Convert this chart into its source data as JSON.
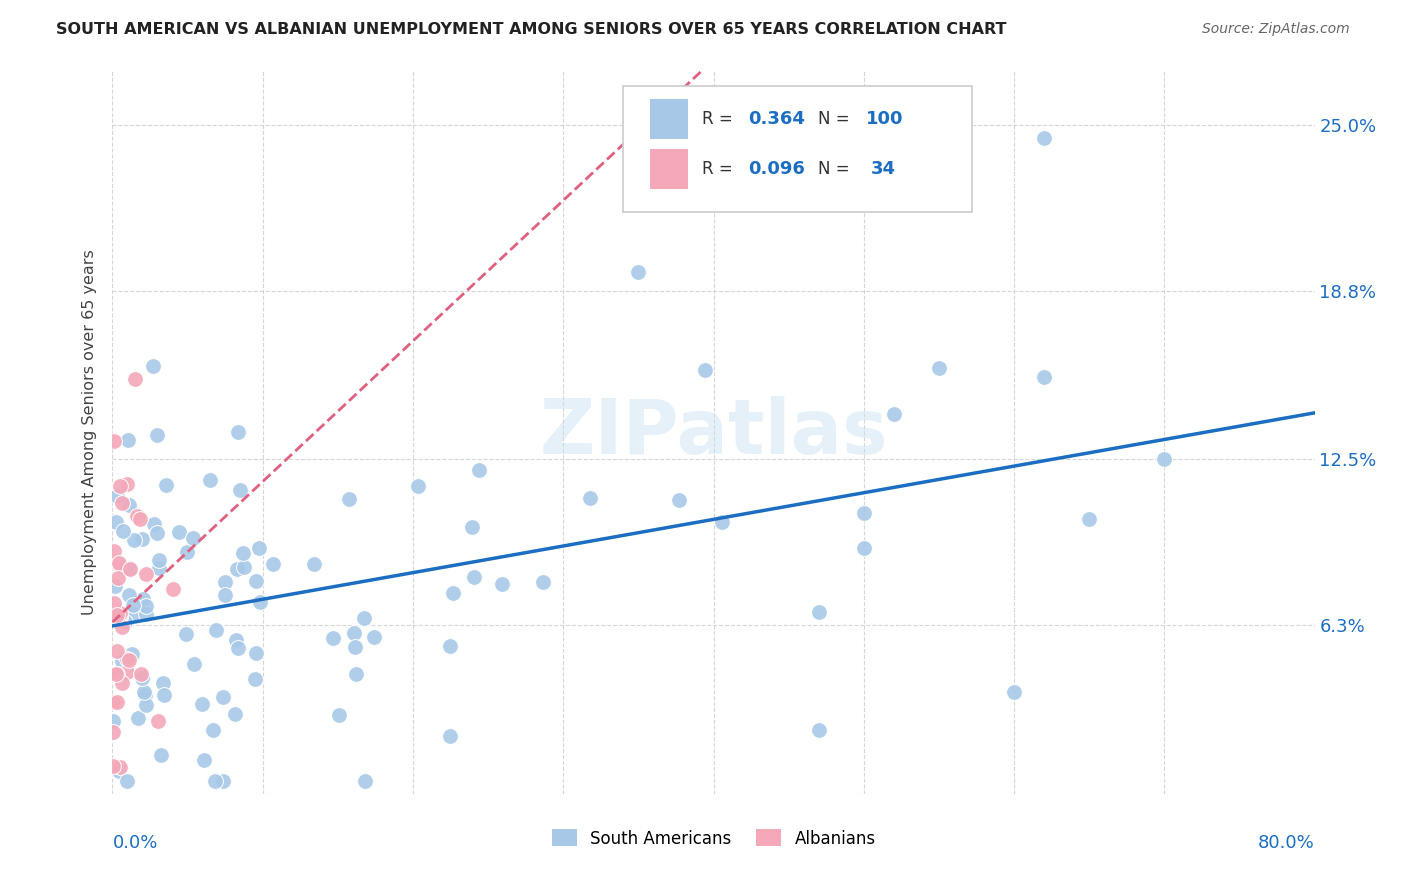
{
  "title": "SOUTH AMERICAN VS ALBANIAN UNEMPLOYMENT AMONG SENIORS OVER 65 YEARS CORRELATION CHART",
  "source": "Source: ZipAtlas.com",
  "ylabel": "Unemployment Among Seniors over 65 years",
  "ytick_labels": [
    "6.3%",
    "12.5%",
    "18.8%",
    "25.0%"
  ],
  "ytick_values": [
    0.063,
    0.125,
    0.188,
    0.25
  ],
  "xmin": 0.0,
  "xmax": 0.8,
  "ymin": 0.0,
  "ymax": 0.27,
  "watermark": "ZIPatlas",
  "blue_color": "#A8C8E8",
  "pink_color": "#F4A8B8",
  "trend_blue_color": "#1B6EC2",
  "trend_pink_color": "#E06080",
  "label_color": "#1B6EC2",
  "grid_color": "#CCCCCC",
  "title_color": "#222222",
  "source_color": "#666666"
}
